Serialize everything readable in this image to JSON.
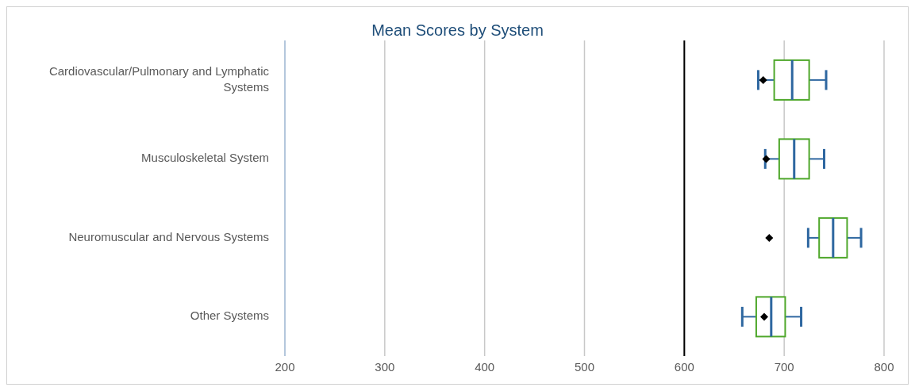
{
  "chart_data": {
    "type": "box",
    "title": "Mean Scores by System",
    "orientation": "horizontal",
    "categories": [
      "Cardiovascular/Pulmonary and Lymphatic Systems",
      "Musculoskeletal System",
      "Neuromuscular and Nervous Systems",
      "Other Systems"
    ],
    "boxes": [
      {
        "low": 674,
        "q1": 690,
        "median": 708,
        "q3": 725,
        "high": 742,
        "mean": 679
      },
      {
        "low": 681,
        "q1": 695,
        "median": 710,
        "q3": 725,
        "high": 740,
        "mean": 682
      },
      {
        "low": 724,
        "q1": 735,
        "median": 749,
        "q3": 763,
        "high": 777,
        "mean": 685
      },
      {
        "low": 658,
        "q1": 672,
        "median": 687,
        "q3": 701,
        "high": 717,
        "mean": 680
      }
    ],
    "colors": [
      "#4ea72a",
      "#4ea72a",
      "#4ea72a",
      "#4ea72a"
    ],
    "xlim": [
      200,
      800
    ],
    "xticks": [
      200,
      300,
      400,
      500,
      600,
      700,
      800
    ],
    "grid": "x",
    "marker": "diamond",
    "ref_lines": [
      {
        "axis": "x",
        "value": 600,
        "color": "#000000"
      }
    ]
  }
}
